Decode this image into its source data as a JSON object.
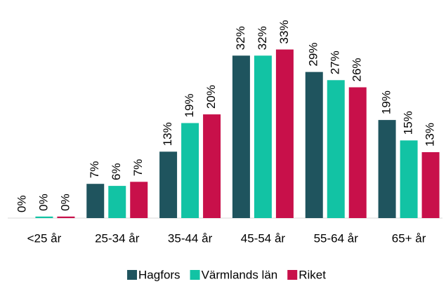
{
  "chart_data": {
    "type": "bar",
    "categories": [
      "<25 år",
      "25-34 år",
      "35-44 år",
      "45-54 år",
      "55-64 år",
      "65+ år"
    ],
    "series": [
      {
        "name": "Hagfors",
        "color": "#1f545e",
        "values": [
          0,
          6.7,
          13,
          31.8,
          28.6,
          19.2
        ],
        "value_labels": [
          "0%",
          "7%",
          "13%",
          "32%",
          "29%",
          "19%"
        ]
      },
      {
        "name": "Värmlands län",
        "color": "#12c3a4",
        "values": [
          0.3,
          6.3,
          18.6,
          31.8,
          27,
          15.2
        ],
        "value_labels": [
          "0%",
          "6%",
          "19%",
          "32%",
          "27%",
          "15%"
        ]
      },
      {
        "name": "Riket",
        "color": "#c8104a",
        "values": [
          0.3,
          7.1,
          20.3,
          33,
          25.6,
          12.9
        ],
        "value_labels": [
          "0%",
          "7%",
          "20%",
          "33%",
          "26%",
          "13%"
        ]
      }
    ],
    "ylim": [
      0,
      35
    ],
    "legend": "bottom"
  }
}
